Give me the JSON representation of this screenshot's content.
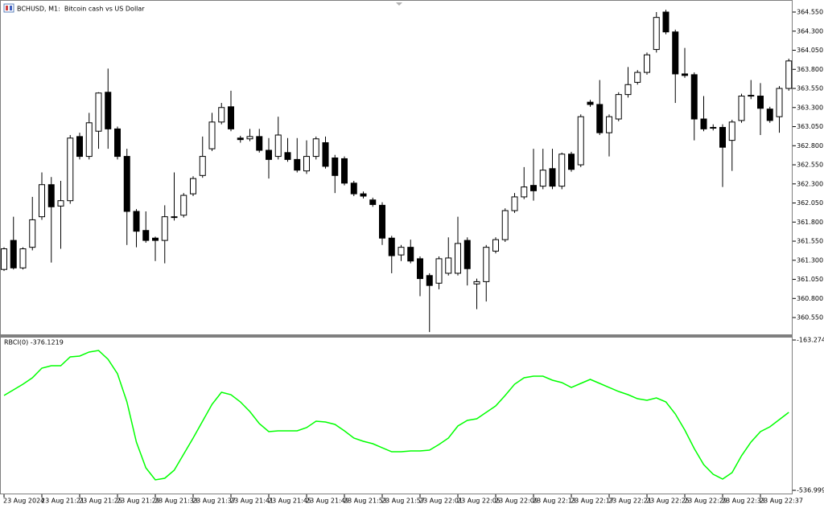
{
  "chart_data": [
    {
      "type": "candlestick",
      "title": "BCHUSD, M1:  Bitcoin cash vs US Dollar",
      "categories": [
        "23 Aug 2024",
        null,
        null,
        null,
        "23 Aug 21:21",
        null,
        null,
        null,
        "23 Aug 21:25",
        null,
        null,
        null,
        "23 Aug 21:29",
        null,
        null,
        null,
        "23 Aug 21:33",
        null,
        null,
        null,
        "23 Aug 21:37",
        null,
        null,
        null,
        "23 Aug 21:41",
        null,
        null,
        null,
        "23 Aug 21:45",
        null,
        null,
        null,
        "23 Aug 21:49",
        null,
        null,
        null,
        "23 Aug 21:53",
        null,
        null,
        null,
        "23 Aug 21:57",
        null,
        null,
        null,
        "23 Aug 22:01",
        null,
        null,
        null,
        "23 Aug 22:05",
        null,
        null,
        null,
        "23 Aug 22:09",
        null,
        null,
        null,
        "23 Aug 22:13",
        null,
        null,
        null,
        "23 Aug 22:17",
        null,
        null,
        null,
        "23 Aug 22:21",
        null,
        null,
        null,
        "23 Aug 22:25",
        null,
        null,
        null,
        "23 Aug 22:29",
        null,
        null,
        null,
        "23 Aug 22:33",
        null,
        null,
        null,
        "23 Aug 22:37",
        null,
        null,
        null
      ],
      "open": [
        361.18,
        361.56,
        361.2,
        361.47,
        361.87,
        362.29,
        362.01,
        362.08,
        362.92,
        362.66,
        362.99,
        363.5,
        363.02,
        362.66,
        361.94,
        361.69,
        361.59,
        361.56,
        361.86,
        361.89,
        362.17,
        362.41,
        362.76,
        363.11,
        363.31,
        362.9,
        362.89,
        362.92,
        362.74,
        362.66,
        362.71,
        362.62,
        362.47,
        362.66,
        362.84,
        362.64,
        362.63,
        362.31,
        362.17,
        362.09,
        362.02,
        361.59,
        361.37,
        361.47,
        361.32,
        361.1,
        361.0,
        361.13,
        361.13,
        361.56,
        360.99,
        361.02,
        361.42,
        361.57,
        361.95,
        362.13,
        362.28,
        362.27,
        362.5,
        362.27,
        362.69,
        362.55,
        363.37,
        363.34,
        362.97,
        363.15,
        363.47,
        363.63,
        363.76,
        364.06,
        364.55,
        364.29,
        363.74,
        363.73,
        363.15,
        363.04,
        363.04,
        362.87,
        363.13,
        363.46,
        363.45,
        363.28,
        363.18,
        363.55
      ],
      "high": [
        361.47,
        361.87,
        361.47,
        362.13,
        362.45,
        362.39,
        362.34,
        362.94,
        362.97,
        363.23,
        363.5,
        363.81,
        363.05,
        362.76,
        361.97,
        361.94,
        361.61,
        362.02,
        362.45,
        362.18,
        362.4,
        362.92,
        363.23,
        363.36,
        363.52,
        362.93,
        363.02,
        363.02,
        362.9,
        363.18,
        362.9,
        362.9,
        362.87,
        362.92,
        362.92,
        362.68,
        362.66,
        362.34,
        362.2,
        362.12,
        362.06,
        361.62,
        361.5,
        361.57,
        361.35,
        361.13,
        361.35,
        361.6,
        361.87,
        361.6,
        361.06,
        361.5,
        361.6,
        361.98,
        362.18,
        362.52,
        362.76,
        362.76,
        362.76,
        362.71,
        362.72,
        363.21,
        363.4,
        363.66,
        363.21,
        363.5,
        363.83,
        363.79,
        364.02,
        364.55,
        364.58,
        364.32,
        364.08,
        363.76,
        363.45,
        363.08,
        363.08,
        363.14,
        363.48,
        363.66,
        363.62,
        363.31,
        363.58,
        363.94
      ],
      "low": [
        361.16,
        361.18,
        361.18,
        361.43,
        361.83,
        361.27,
        361.45,
        362.04,
        362.62,
        362.62,
        362.76,
        362.76,
        362.62,
        361.5,
        361.47,
        361.53,
        361.29,
        361.26,
        361.82,
        361.86,
        362.14,
        362.38,
        362.73,
        363.08,
        362.99,
        362.84,
        362.86,
        362.71,
        362.37,
        362.62,
        362.59,
        362.45,
        362.43,
        362.62,
        362.5,
        362.18,
        362.28,
        362.14,
        362.11,
        362.0,
        361.5,
        361.13,
        361.29,
        361.26,
        360.83,
        360.36,
        360.92,
        361.1,
        361.1,
        360.97,
        360.66,
        360.76,
        361.39,
        361.54,
        361.92,
        362.1,
        362.08,
        362.23,
        362.23,
        362.23,
        362.46,
        362.52,
        363.31,
        362.94,
        362.66,
        363.12,
        363.43,
        363.6,
        363.73,
        364.02,
        364.26,
        363.36,
        363.69,
        362.87,
        362.99,
        363.0,
        362.26,
        362.47,
        363.1,
        363.41,
        362.94,
        363.1,
        362.97,
        363.52
      ],
      "close": [
        361.45,
        361.2,
        361.45,
        361.83,
        362.29,
        362.0,
        362.08,
        362.9,
        362.66,
        363.1,
        363.49,
        363.02,
        362.66,
        361.94,
        361.68,
        361.56,
        361.56,
        361.87,
        361.87,
        362.15,
        362.37,
        362.66,
        363.11,
        363.3,
        363.02,
        362.88,
        362.92,
        362.74,
        362.62,
        362.94,
        362.62,
        362.48,
        362.66,
        362.89,
        362.53,
        362.41,
        362.31,
        362.17,
        362.14,
        362.03,
        361.59,
        361.36,
        361.47,
        361.29,
        361.06,
        360.97,
        361.32,
        361.33,
        361.52,
        361.19,
        361.02,
        361.47,
        361.57,
        361.95,
        362.13,
        362.26,
        362.21,
        362.48,
        362.27,
        362.69,
        362.49,
        363.18,
        363.34,
        362.97,
        363.18,
        363.47,
        363.6,
        363.76,
        363.99,
        364.48,
        364.29,
        363.74,
        363.72,
        363.15,
        363.02,
        363.03,
        362.78,
        363.11,
        363.45,
        363.45,
        363.29,
        363.13,
        363.55,
        363.91
      ],
      "up_color": "#ffffff",
      "down_color": "#000000",
      "edge_color": "#000000",
      "ylim": [
        360.319,
        364.708
      ],
      "yticks": [
        {
          "value": 364.55,
          "label": "364.550"
        },
        {
          "value": 364.3,
          "label": "364.300"
        },
        {
          "value": 364.05,
          "label": "364.050"
        },
        {
          "value": 363.8,
          "label": "363.800"
        },
        {
          "value": 363.55,
          "label": "363.550"
        },
        {
          "value": 363.3,
          "label": "363.300"
        },
        {
          "value": 363.05,
          "label": "363.050"
        },
        {
          "value": 362.8,
          "label": "362.800"
        },
        {
          "value": 362.55,
          "label": "362.550"
        },
        {
          "value": 362.3,
          "label": "362.300"
        },
        {
          "value": 362.05,
          "label": "362.050"
        },
        {
          "value": 361.8,
          "label": "361.800"
        },
        {
          "value": 361.55,
          "label": "361.550"
        },
        {
          "value": 361.3,
          "label": "361.300"
        },
        {
          "value": 361.05,
          "label": "361.050"
        },
        {
          "value": 360.8,
          "label": "360.800"
        },
        {
          "value": 360.55,
          "label": "360.550"
        }
      ],
      "grid": false
    },
    {
      "type": "line",
      "title": "RBCI(0) -376.1219",
      "series": [
        {
          "color": "#00ff00",
          "values": [
            -301.2,
            -287.2,
            -273.2,
            -257.2,
            -233.2,
            -227.2,
            -227.2,
            -205.2,
            -203.2,
            -193.2,
            -189.3,
            -211.2,
            -247.2,
            -317.2,
            -417.1,
            -481.0,
            -511.0,
            -507.0,
            -487.0,
            -447.1,
            -407.1,
            -365.1,
            -323.2,
            -293.2,
            -299.2,
            -317.2,
            -341.2,
            -371.1,
            -391.1,
            -389.1,
            -389.1,
            -389.1,
            -381.1,
            -365.1,
            -367.1,
            -373.1,
            -389.1,
            -407.1,
            -415.1,
            -421.1,
            -431.1,
            -441.1,
            -441.1,
            -439.1,
            -439.1,
            -437.1,
            -423.1,
            -407.1,
            -377.1,
            -363.1,
            -359.1,
            -343.2,
            -327.2,
            -301.2,
            -273.2,
            -257.2,
            -253.2,
            -253.2,
            -263.2,
            -269.2,
            -281.2,
            -271.2,
            -261.2,
            -271.2,
            -281.2,
            -291.2,
            -299.2,
            -309.2,
            -313.2,
            -307.2,
            -317.2,
            -347.2,
            -387.1,
            -433.1,
            -473.1,
            -497.0,
            -509.0,
            -493.0,
            -451.1,
            -417.1,
            -391.1,
            -379.1,
            -361.1,
            -343.2
          ]
        }
      ],
      "ylim": [
        -536.9999,
        -163.2744
      ],
      "yticks": [
        -163.2744,
        -536.9999
      ],
      "grid": false
    }
  ]
}
